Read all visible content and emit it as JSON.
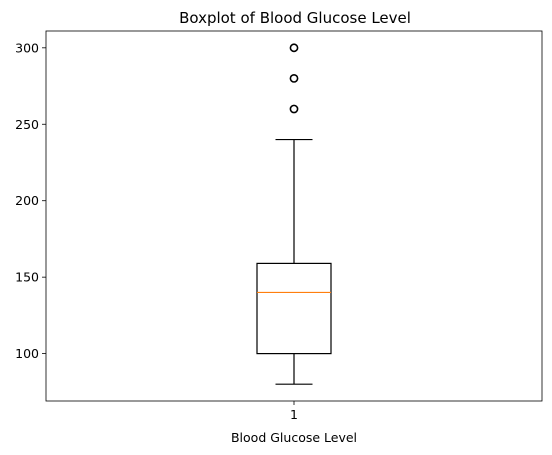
{
  "chart_data": {
    "type": "boxplot",
    "title": "Boxplot of Blood Glucose Level",
    "xlabel": "Blood Glucose Level",
    "ylabel": "",
    "categories": [
      "1"
    ],
    "boxes": [
      {
        "category": "1",
        "whisker_low": 80,
        "q1": 100,
        "median": 140,
        "q3": 159,
        "whisker_high": 240,
        "outliers": [
          260,
          280,
          300
        ]
      }
    ],
    "ylim": [
      69,
      311
    ],
    "yticks": [
      100,
      150,
      200,
      250,
      300
    ],
    "grid": false,
    "colors": {
      "box": "#000000",
      "median": "#ff7f0e",
      "axes": "#000000"
    }
  }
}
